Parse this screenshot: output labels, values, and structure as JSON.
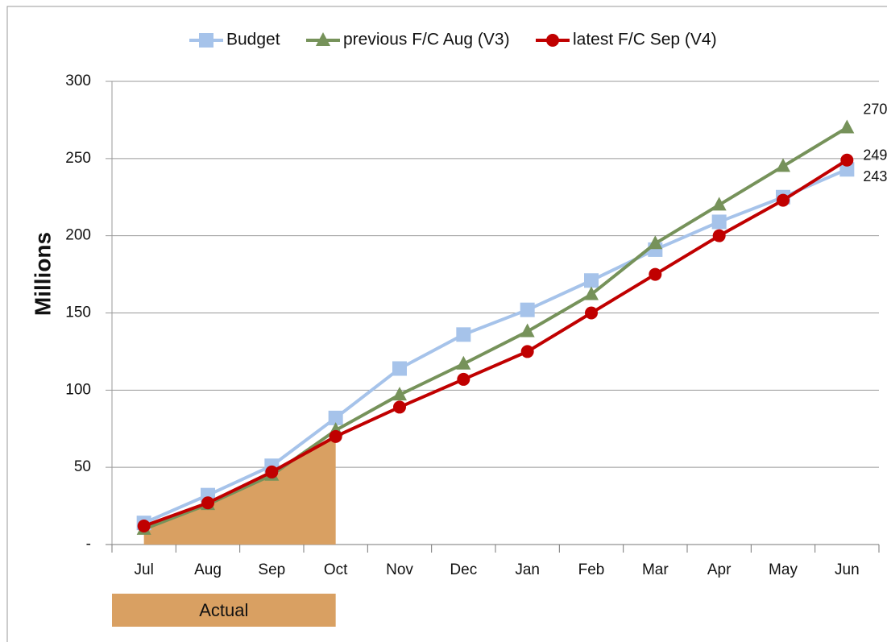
{
  "chart_data": {
    "type": "line",
    "y_label": "Millions",
    "categories": [
      "Jul",
      "Aug",
      "Sep",
      "Oct",
      "Nov",
      "Dec",
      "Jan",
      "Feb",
      "Mar",
      "Apr",
      "May",
      "Jun"
    ],
    "series": [
      {
        "name": "Budget",
        "color": "#a6c3ea",
        "marker": "square",
        "values": [
          14,
          32,
          51,
          82,
          114,
          136,
          152,
          171,
          191,
          209,
          225,
          243
        ]
      },
      {
        "name": "previous F/C Aug (V3)",
        "color": "#76925a",
        "marker": "triangle",
        "values": [
          10,
          26,
          45,
          74,
          97,
          117,
          138,
          162,
          195,
          220,
          245,
          270
        ]
      },
      {
        "name": "latest F/C Sep (V4)",
        "color": "#c00000",
        "marker": "circle",
        "values": [
          12,
          27,
          47,
          70,
          89,
          107,
          125,
          150,
          175,
          200,
          223,
          249
        ]
      }
    ],
    "actual": {
      "label": "Actual",
      "from": "Jul",
      "to": "Oct",
      "color": "#d9a062"
    },
    "ylim": [
      0,
      300
    ],
    "yticks": [
      {
        "value": 0,
        "label": "-"
      },
      50,
      100,
      150,
      200,
      250,
      300
    ],
    "grid": true,
    "legend": "top"
  }
}
